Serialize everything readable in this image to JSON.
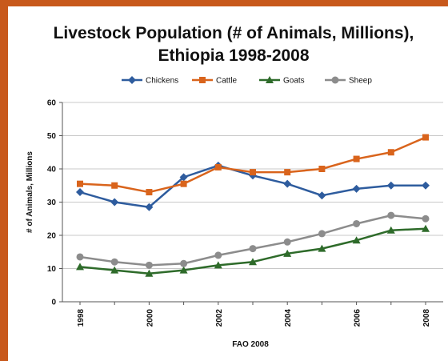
{
  "chart_data": {
    "type": "line",
    "title_line1": "Livestock Population (# of Animals, Millions),",
    "title_line2": "Ethiopia 1998-2008",
    "xlabel": "FAO 2008",
    "ylabel": "# of Animals, Millions",
    "ylim": [
      0,
      60
    ],
    "yticks": [
      "0",
      "10",
      "20",
      "30",
      "40",
      "50",
      "60"
    ],
    "x": [
      1998,
      1999,
      2000,
      2001,
      2002,
      2003,
      2004,
      2005,
      2006,
      2007,
      2008
    ],
    "xtick_labels": [
      "1998",
      "2000",
      "2002",
      "2004",
      "2006",
      "2008"
    ],
    "grid": true,
    "legend_position": "top",
    "series": [
      {
        "name": "Chickens",
        "color": "#2e5c9e",
        "marker": "diamond",
        "values": [
          33,
          30,
          28.5,
          37.5,
          41,
          38,
          35.5,
          32,
          34,
          35,
          35
        ]
      },
      {
        "name": "Cattle",
        "color": "#d9641c",
        "marker": "square",
        "values": [
          35.5,
          35,
          33,
          35.5,
          40.5,
          39,
          39,
          40,
          43,
          45,
          49.5
        ]
      },
      {
        "name": "Goats",
        "color": "#2e6b2a",
        "marker": "triangle",
        "values": [
          10.5,
          9.5,
          8.5,
          9.5,
          11,
          12,
          14.5,
          16,
          18.5,
          21.5,
          22
        ]
      },
      {
        "name": "Sheep",
        "color": "#8c8c8c",
        "marker": "circle",
        "values": [
          13.5,
          12,
          11,
          11.5,
          14,
          16,
          18,
          20.5,
          23.5,
          26,
          25
        ]
      }
    ]
  }
}
